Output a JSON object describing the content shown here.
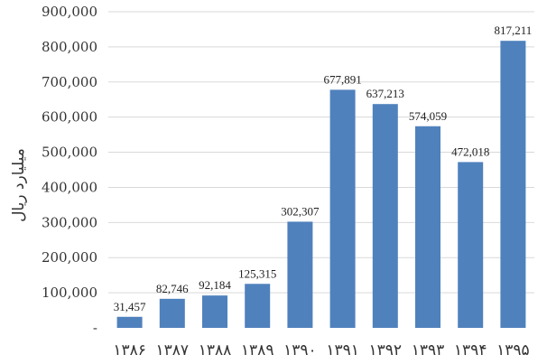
{
  "chart_data": {
    "type": "bar",
    "title": "",
    "xlabel": "",
    "ylabel": "میلیارد ریال",
    "categories": [
      "۱۳۸۶",
      "۱۳۸۷",
      "۱۳۸۸",
      "۱۳۸۹",
      "۱۳۹۰",
      "۱۳۹۱",
      "۱۳۹۲",
      "۱۳۹۳",
      "۱۳۹۴",
      "۱۳۹۵"
    ],
    "values": [
      31457,
      82746,
      92184,
      125315,
      302307,
      677891,
      637213,
      574059,
      472018,
      817211
    ],
    "data_labels": [
      "31,457",
      "82,746",
      "92,184",
      "125,315",
      "302,307",
      "677,891",
      "637,213",
      "574,059",
      "472,018",
      "817,211"
    ],
    "yticks": [
      "-",
      "100,000",
      "200,000",
      "300,000",
      "400,000",
      "500,000",
      "600,000",
      "700,000",
      "800,000",
      "900,000"
    ],
    "ylim": [
      0,
      900000
    ],
    "grid": true,
    "bar_color": "#4f81bd"
  }
}
